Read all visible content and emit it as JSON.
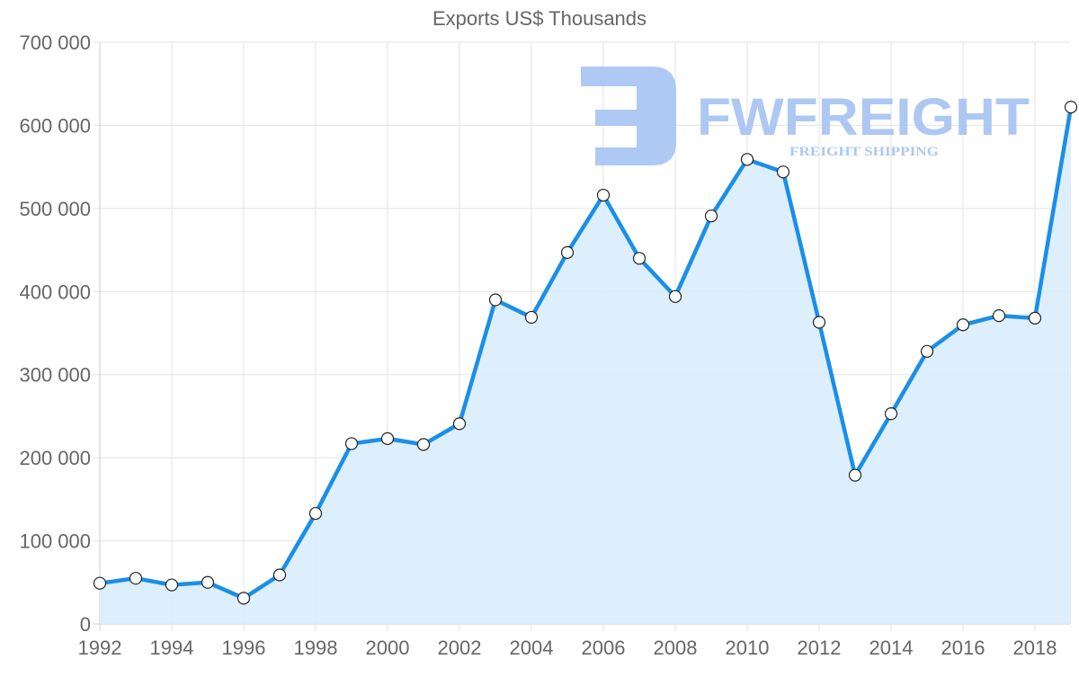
{
  "chart_data": {
    "type": "area",
    "title": "Exports US$ Thousands",
    "xlabel": "",
    "ylabel": "",
    "ylim": [
      0,
      700000
    ],
    "grid": true,
    "legend": null,
    "yticks": [
      0,
      100000,
      200000,
      300000,
      400000,
      500000,
      600000,
      700000
    ],
    "ytick_labels": [
      "0",
      "100 000",
      "200 000",
      "300 000",
      "400 000",
      "500 000",
      "600 000",
      "700 000"
    ],
    "xtick_labels": [
      "1992",
      "1994",
      "1996",
      "1998",
      "2000",
      "2002",
      "2004",
      "2006",
      "2008",
      "2010",
      "2012",
      "2014",
      "2016",
      "2018"
    ],
    "x": [
      1992,
      1993,
      1994,
      1995,
      1996,
      1997,
      1998,
      1999,
      2000,
      2001,
      2002,
      2003,
      2004,
      2005,
      2006,
      2007,
      2008,
      2009,
      2010,
      2011,
      2012,
      2013,
      2014,
      2015,
      2016,
      2017,
      2018,
      2019
    ],
    "series": [
      {
        "name": "Exports",
        "values": [
          49000,
          55000,
          47000,
          50000,
          31000,
          59000,
          133000,
          217000,
          223000,
          216000,
          241000,
          390000,
          369000,
          447000,
          516000,
          440000,
          394000,
          491000,
          559000,
          544000,
          363000,
          179000,
          253000,
          328000,
          360000,
          371000,
          368000,
          622000
        ],
        "line_color": "#1a8fe8",
        "fill_color": "#d9ecfc"
      }
    ]
  },
  "watermark": {
    "brand": "FWFREIGHT",
    "tagline": "FREIGHT SHIPPING",
    "color": "#a9c6f3"
  }
}
